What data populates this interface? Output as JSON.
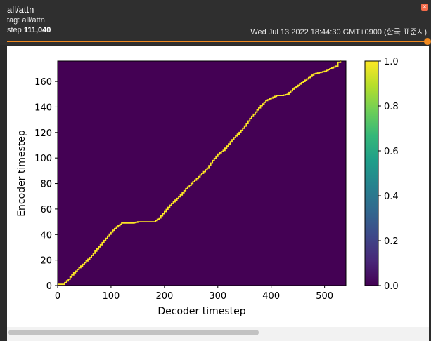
{
  "card": {
    "title": "all/attn",
    "tag_line": "tag: all/attn",
    "step_label": "step",
    "step_value": "111,040",
    "timestamp": "Wed Jul 13 2022 18:44:30 GMT+0900 (한국 표준시)",
    "close_glyph": "×"
  },
  "slider": {
    "value": 1.0,
    "color": "#f0891f"
  },
  "scrollbar": {
    "position": 0.0,
    "visible_fraction": 0.6
  },
  "chart_data": {
    "type": "heatmap",
    "title": "",
    "xlabel": "Decoder timestep",
    "ylabel": "Encoder timestep",
    "xlim": [
      0,
      540
    ],
    "ylim": [
      0,
      176
    ],
    "xticks": [
      0,
      100,
      200,
      300,
      400,
      500
    ],
    "yticks": [
      0,
      20,
      40,
      60,
      80,
      100,
      120,
      140,
      160
    ],
    "background_value": 0.0,
    "line_value": 1.0,
    "alignment_path": {
      "x": [
        0,
        10,
        20,
        30,
        40,
        50,
        60,
        70,
        80,
        90,
        100,
        110,
        120,
        130,
        140,
        150,
        160,
        170,
        180,
        190,
        200,
        210,
        220,
        230,
        240,
        250,
        260,
        270,
        280,
        290,
        300,
        310,
        320,
        330,
        340,
        350,
        360,
        370,
        380,
        390,
        400,
        410,
        420,
        430,
        440,
        450,
        460,
        470,
        480,
        490,
        500,
        510,
        520,
        525,
        530
      ],
      "y": [
        1,
        1,
        5,
        10,
        14,
        18,
        22,
        27,
        32,
        37,
        42,
        46,
        49,
        49,
        49,
        50,
        50,
        50,
        50,
        53,
        58,
        63,
        67,
        71,
        76,
        80,
        84,
        88,
        92,
        98,
        103,
        106,
        111,
        116,
        120,
        125,
        131,
        136,
        141,
        145,
        147,
        149,
        149,
        150,
        154,
        157,
        160,
        163,
        166,
        167,
        168,
        170,
        172,
        175,
        177
      ]
    },
    "colorbar": {
      "min": 0.0,
      "max": 1.0,
      "ticks": [
        "0.0",
        "0.2",
        "0.4",
        "0.6",
        "0.8",
        "1.0"
      ],
      "colormap": [
        "#440154",
        "#482878",
        "#3e4989",
        "#31688e",
        "#26828e",
        "#1f9e89",
        "#35b779",
        "#6ece58",
        "#b5de2b",
        "#fde725"
      ]
    }
  }
}
